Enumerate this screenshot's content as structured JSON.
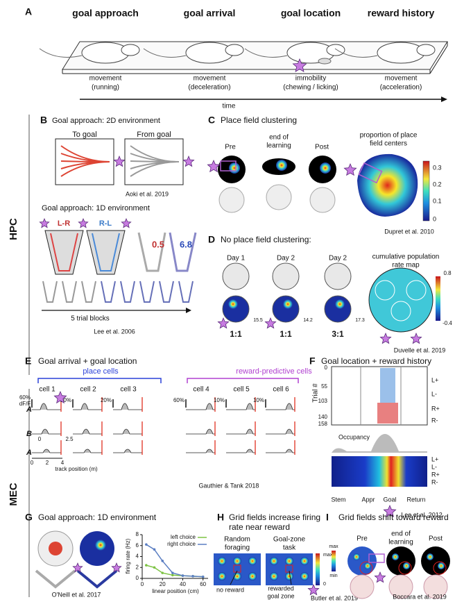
{
  "panelA": {
    "label": "A",
    "stages": [
      {
        "title": "goal approach",
        "state": [
          "movement",
          "(running)"
        ]
      },
      {
        "title": "goal arrival",
        "state": [
          "movement",
          "(deceleration)"
        ]
      },
      {
        "title": "goal location",
        "state": [
          "immobility",
          "(chewing / licking)"
        ]
      },
      {
        "title": "reward history",
        "state": [
          "movement",
          "(acceleration)"
        ]
      }
    ],
    "axis": "time"
  },
  "regions": [
    "HPC",
    "MEC"
  ],
  "panelB": {
    "label": "B",
    "title2d": "Goal approach: 2D environment",
    "toGoal": "To goal",
    "fromGoal": "From goal",
    "ref2d": "Aoki et al. 2019",
    "title1d": "Goal approach: 1D environment",
    "lr": "L-R",
    "rl": "R-L",
    "values": [
      "0.5",
      "6.8"
    ],
    "blocks": "5 trial blocks",
    "ref1d": "Lee  et al. 2006"
  },
  "panelC": {
    "label": "C",
    "title": "Place field clustering",
    "phases": [
      "Pre",
      [
        "end of",
        "learning"
      ],
      "Post"
    ],
    "mapTitle": [
      "proportion of place",
      "field centers"
    ],
    "colorbar": [
      "0.3",
      "0.2",
      "0.1",
      "0"
    ],
    "ref": "Dupret et al. 2010"
  },
  "panelD": {
    "label": "D",
    "title": "No place field clustering:",
    "days": [
      "Day 1",
      "Day 2",
      "Day 2"
    ],
    "peaks": [
      "15.5",
      "14.2",
      "17.3"
    ],
    "ratios": [
      "1:1",
      "1:1",
      "3:1"
    ],
    "mapTitle": [
      "cumulative population",
      "rate map"
    ],
    "colorbar": [
      "0.8",
      "-0.4"
    ],
    "ref": "Duvelle et al. 2019"
  },
  "panelE": {
    "label": "E",
    "title": "Goal arrival + goal location",
    "groups": [
      "place cells",
      "reward-predictive cells"
    ],
    "cells": [
      "cell 1",
      "cell 2",
      "cell 3",
      "cell 4",
      "cell 5",
      "cell 6"
    ],
    "rows": [
      "A",
      "B",
      "A"
    ],
    "scales": [
      [
        "60%",
        "dF/F"
      ],
      "20%",
      "20%",
      "60%",
      "10%",
      "10%"
    ],
    "innerTicks": [
      "0",
      "2.5"
    ],
    "xticks": [
      "0",
      "2",
      "4"
    ],
    "xlabel": "track position (m)",
    "ref": "Gauthier & Tank 2018"
  },
  "panelF": {
    "label": "F",
    "title": "Goal location + reward history",
    "yticks": [
      "0",
      "55",
      "103",
      "140",
      "158"
    ],
    "ylabel": "Trial #",
    "trialTypes": [
      "L+",
      "L-",
      "R+",
      "R-"
    ],
    "occupancy": "Occupancy",
    "heatRows": [
      "L+",
      "L-",
      "R+",
      "R-"
    ],
    "segments": [
      "Stem",
      "Appr",
      "Goal",
      "Return"
    ],
    "ref": "Lee et al. 2012"
  },
  "panelG": {
    "label": "G",
    "title": "Goal approach: 1D environment",
    "ref": "O'Neill et al. 2017",
    "plot": {
      "type": "line",
      "x": [
        4,
        12,
        20,
        30,
        40,
        50,
        60
      ],
      "series": [
        {
          "name": "left choice",
          "color": "#7cc242",
          "values": [
            2.4,
            2.0,
            1.0,
            0.6,
            0.5,
            0.4,
            0.3
          ]
        },
        {
          "name": "right choice",
          "color": "#5b7ec2",
          "values": [
            6.2,
            5.3,
            3.2,
            1.0,
            0.5,
            0.4,
            0.3
          ]
        }
      ],
      "xlim": [
        0,
        65
      ],
      "ylim": [
        0,
        8
      ],
      "xticks": [
        0,
        20,
        40,
        60
      ],
      "yticks": [
        0,
        2,
        4,
        6,
        8
      ],
      "xlabel": "linear position (cm)",
      "ylabel": "firing rate (Hz)"
    }
  },
  "panelH": {
    "label": "H",
    "title": [
      "Grid fields increase firing",
      "rate near reward"
    ],
    "conditions": [
      [
        "Random",
        "foraging"
      ],
      [
        "Goal-zone",
        "task"
      ]
    ],
    "colorbar": [
      "max",
      "0"
    ],
    "noReward": "no reward",
    "rewarded": [
      "rewarded",
      "goal zone"
    ],
    "ref": "Butler et al. 2019"
  },
  "panelI": {
    "label": "I",
    "title": "Grid fields shift toward reward",
    "phases": [
      "Pre",
      [
        "end of",
        "learning"
      ],
      "Post"
    ],
    "colorbar": [
      "max",
      "min"
    ],
    "ref": "Boccara et al. 2019"
  }
}
